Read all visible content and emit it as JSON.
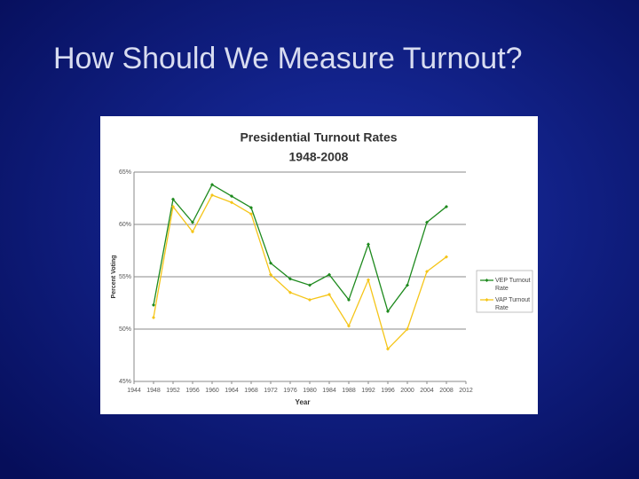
{
  "slide_title": "How Should We Measure Turnout?",
  "chart_data": {
    "type": "line",
    "title": "Presidential Turnout Rates",
    "subtitle": "1948-2008",
    "x_label": "Year",
    "y_label": "Percent Voting",
    "x": [
      1948,
      1952,
      1956,
      1960,
      1964,
      1968,
      1972,
      1976,
      1980,
      1984,
      1988,
      1992,
      1996,
      2000,
      2004,
      2008
    ],
    "series": [
      {
        "name": "VEP Turnout Rate",
        "color": "#1e8a1e",
        "values": [
          52.3,
          62.4,
          60.2,
          63.8,
          62.7,
          61.6,
          56.3,
          54.8,
          54.2,
          55.2,
          52.8,
          58.1,
          51.7,
          54.2,
          60.2,
          61.7
        ]
      },
      {
        "name": "VAP Turnout Rate",
        "color": "#f5c518",
        "values": [
          51.1,
          61.7,
          59.3,
          62.8,
          62.1,
          61.0,
          55.2,
          53.5,
          52.8,
          53.3,
          50.3,
          54.7,
          48.1,
          50.0,
          55.5,
          56.9
        ]
      }
    ],
    "xlim": [
      1944,
      2012
    ],
    "xticks": [
      1944,
      1948,
      1952,
      1956,
      1960,
      1964,
      1968,
      1972,
      1976,
      1980,
      1984,
      1988,
      1992,
      1996,
      2000,
      2004,
      2008,
      2012
    ],
    "ylim": [
      45,
      65
    ],
    "yticks": [
      {
        "value": 45,
        "label": "45%"
      },
      {
        "value": 50,
        "label": "50%"
      },
      {
        "value": 55,
        "label": "55%"
      },
      {
        "value": 60,
        "label": "60%"
      },
      {
        "value": 65,
        "label": "65%"
      }
    ],
    "grid": true,
    "legend": "right"
  }
}
